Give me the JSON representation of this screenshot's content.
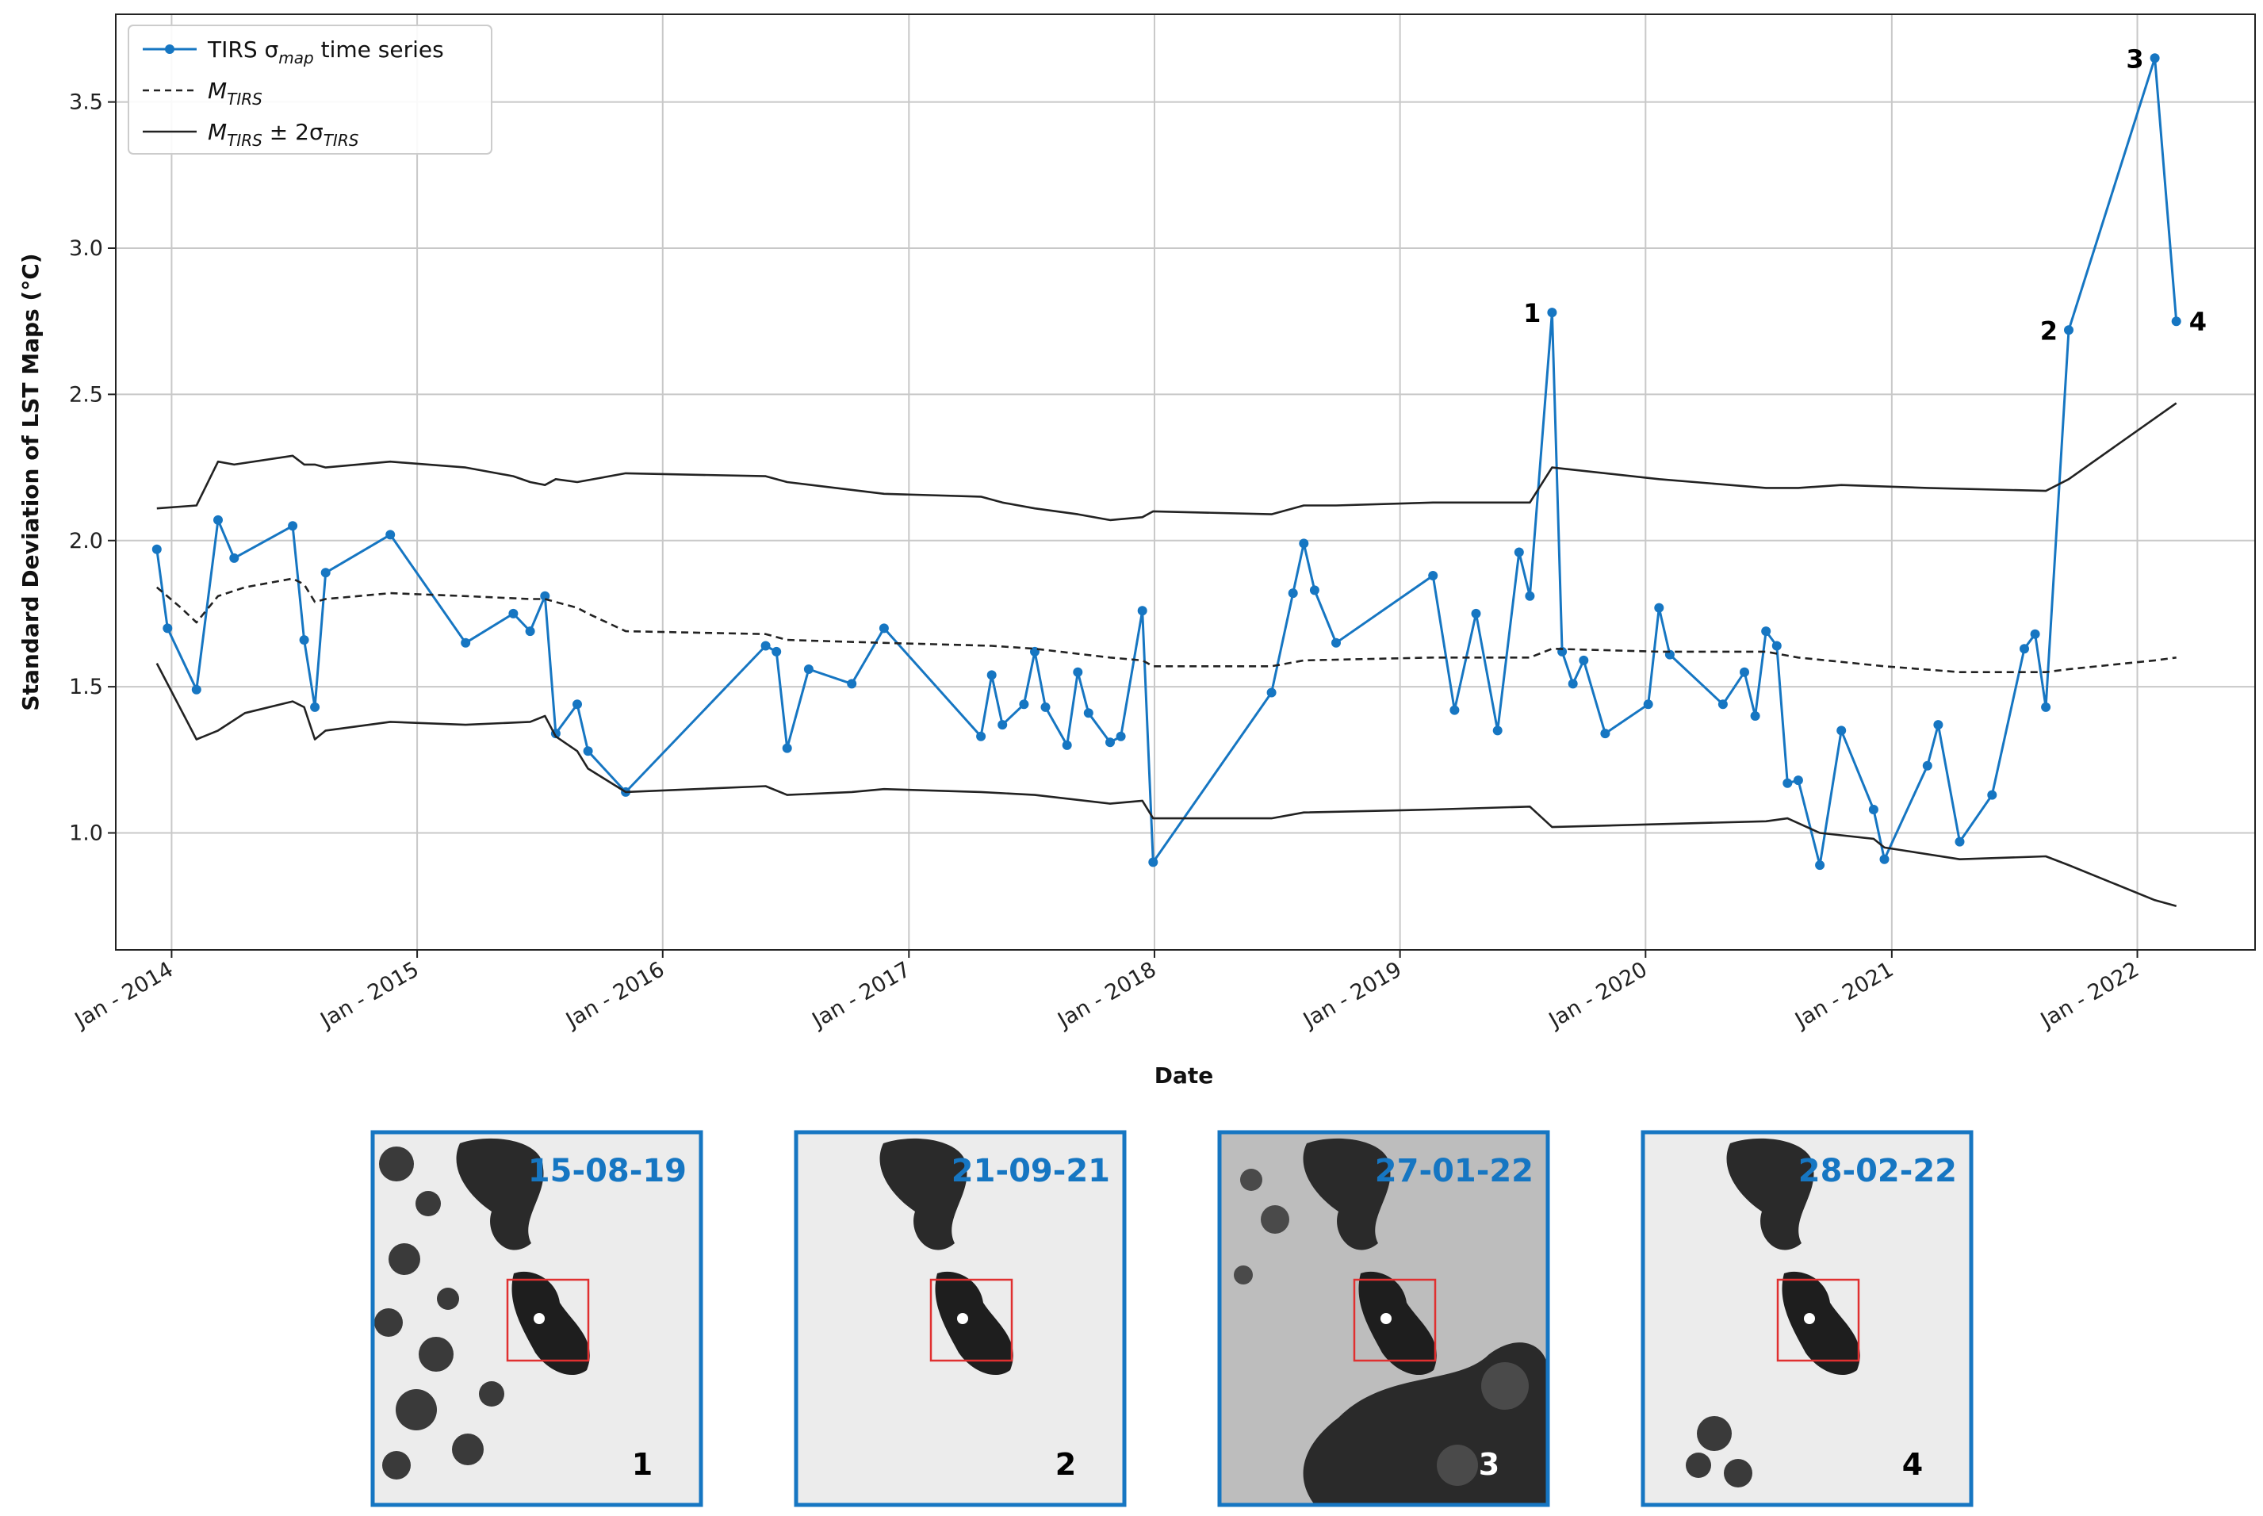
{
  "chart_data": {
    "type": "line",
    "xlabel": "Date",
    "ylabel": "Standard Deviation of LST Maps (°C)",
    "xlim": [
      "2013-10-10",
      "2022-06-25"
    ],
    "ylim": [
      0.6,
      3.8
    ],
    "grid": true,
    "legend_placement": "top-left",
    "x_ticks": [
      {
        "date": "2014-01-01",
        "label": "Jan - 2014"
      },
      {
        "date": "2015-01-01",
        "label": "Jan - 2015"
      },
      {
        "date": "2016-01-01",
        "label": "Jan - 2016"
      },
      {
        "date": "2017-01-01",
        "label": "Jan - 2017"
      },
      {
        "date": "2018-01-01",
        "label": "Jan - 2018"
      },
      {
        "date": "2019-01-01",
        "label": "Jan - 2019"
      },
      {
        "date": "2020-01-01",
        "label": "Jan - 2020"
      },
      {
        "date": "2021-01-01",
        "label": "Jan - 2021"
      },
      {
        "date": "2022-01-01",
        "label": "Jan - 2022"
      }
    ],
    "y_ticks": [
      1.0,
      1.5,
      2.0,
      2.5,
      3.0,
      3.5
    ],
    "y_tick_labels": [
      "1.0",
      "1.5",
      "2.0",
      "2.5",
      "3.0",
      "3.5"
    ],
    "legend": {
      "entries": [
        {
          "text": "TIRS σ",
          "sub": "map",
          "after": " time series",
          "style": "blue-marker"
        },
        {
          "text": "M",
          "sub": "TIRS",
          "after": "",
          "style": "dashed"
        },
        {
          "text": "M",
          "sub": "TIRS",
          "after": " ± 2σ",
          "sub2": "TIRS",
          "style": "solid"
        }
      ]
    },
    "series": [
      {
        "style": "blue-marker",
        "color": "#1676c2",
        "points": [
          [
            "2013-12-10",
            1.97
          ],
          [
            "2013-12-26",
            1.7
          ],
          [
            "2014-02-07",
            1.49
          ],
          [
            "2014-03-11",
            2.07
          ],
          [
            "2014-04-04",
            1.94
          ],
          [
            "2014-06-30",
            2.05
          ],
          [
            "2014-07-17",
            1.66
          ],
          [
            "2014-08-02",
            1.43
          ],
          [
            "2014-08-18",
            1.89
          ],
          [
            "2014-11-22",
            2.02
          ],
          [
            "2015-03-14",
            1.65
          ],
          [
            "2015-05-24",
            1.75
          ],
          [
            "2015-06-18",
            1.69
          ],
          [
            "2015-07-10",
            1.81
          ],
          [
            "2015-07-26",
            1.34
          ],
          [
            "2015-08-27",
            1.44
          ],
          [
            "2015-09-12",
            1.28
          ],
          [
            "2015-11-07",
            1.14
          ],
          [
            "2016-06-02",
            1.64
          ],
          [
            "2016-06-18",
            1.62
          ],
          [
            "2016-07-04",
            1.29
          ],
          [
            "2016-08-05",
            1.56
          ],
          [
            "2016-10-08",
            1.51
          ],
          [
            "2016-11-25",
            1.7
          ],
          [
            "2017-04-18",
            1.33
          ],
          [
            "2017-05-04",
            1.54
          ],
          [
            "2017-05-20",
            1.37
          ],
          [
            "2017-06-21",
            1.44
          ],
          [
            "2017-07-07",
            1.62
          ],
          [
            "2017-07-23",
            1.43
          ],
          [
            "2017-08-24",
            1.3
          ],
          [
            "2017-09-09",
            1.55
          ],
          [
            "2017-09-25",
            1.41
          ],
          [
            "2017-10-27",
            1.31
          ],
          [
            "2017-11-12",
            1.33
          ],
          [
            "2017-12-14",
            1.76
          ],
          [
            "2017-12-30",
            0.9
          ],
          [
            "2018-06-24",
            1.48
          ],
          [
            "2018-07-26",
            1.82
          ],
          [
            "2018-08-11",
            1.99
          ],
          [
            "2018-08-27",
            1.83
          ],
          [
            "2018-09-28",
            1.65
          ],
          [
            "2019-02-19",
            1.88
          ],
          [
            "2019-03-23",
            1.42
          ],
          [
            "2019-04-24",
            1.75
          ],
          [
            "2019-05-26",
            1.35
          ],
          [
            "2019-06-27",
            1.96
          ],
          [
            "2019-07-13",
            1.81
          ],
          [
            "2019-08-15",
            2.78
          ],
          [
            "2019-08-30",
            1.62
          ],
          [
            "2019-09-15",
            1.51
          ],
          [
            "2019-10-01",
            1.59
          ],
          [
            "2019-11-02",
            1.34
          ],
          [
            "2020-01-05",
            1.44
          ],
          [
            "2020-01-21",
            1.77
          ],
          [
            "2020-02-06",
            1.61
          ],
          [
            "2020-04-25",
            1.44
          ],
          [
            "2020-05-27",
            1.55
          ],
          [
            "2020-06-12",
            1.4
          ],
          [
            "2020-06-28",
            1.69
          ],
          [
            "2020-07-14",
            1.64
          ],
          [
            "2020-07-30",
            1.17
          ],
          [
            "2020-08-15",
            1.18
          ],
          [
            "2020-09-16",
            0.89
          ],
          [
            "2020-10-18",
            1.35
          ],
          [
            "2020-12-05",
            1.08
          ],
          [
            "2020-12-21",
            0.91
          ],
          [
            "2021-02-23",
            1.23
          ],
          [
            "2021-03-11",
            1.37
          ],
          [
            "2021-04-12",
            0.97
          ],
          [
            "2021-05-30",
            1.13
          ],
          [
            "2021-07-17",
            1.63
          ],
          [
            "2021-08-02",
            1.68
          ],
          [
            "2021-08-18",
            1.43
          ],
          [
            "2021-09-21",
            2.72
          ],
          [
            "2022-01-27",
            3.65
          ],
          [
            "2022-02-28",
            2.75
          ]
        ]
      },
      {
        "style": "dashed",
        "color": "#222222",
        "points": [
          [
            "2013-12-10",
            1.84
          ],
          [
            "2014-01-15",
            1.77
          ],
          [
            "2014-02-07",
            1.72
          ],
          [
            "2014-03-11",
            1.81
          ],
          [
            "2014-04-20",
            1.84
          ],
          [
            "2014-06-30",
            1.87
          ],
          [
            "2014-07-17",
            1.85
          ],
          [
            "2014-08-02",
            1.79
          ],
          [
            "2014-08-18",
            1.8
          ],
          [
            "2014-11-22",
            1.82
          ],
          [
            "2015-03-14",
            1.81
          ],
          [
            "2015-06-18",
            1.8
          ],
          [
            "2015-07-10",
            1.8
          ],
          [
            "2015-08-27",
            1.77
          ],
          [
            "2015-09-12",
            1.75
          ],
          [
            "2015-11-07",
            1.69
          ],
          [
            "2016-06-02",
            1.68
          ],
          [
            "2016-07-04",
            1.66
          ],
          [
            "2016-11-25",
            1.65
          ],
          [
            "2017-05-04",
            1.64
          ],
          [
            "2017-07-07",
            1.63
          ],
          [
            "2017-10-27",
            1.6
          ],
          [
            "2017-12-14",
            1.59
          ],
          [
            "2017-12-30",
            1.57
          ],
          [
            "2018-06-24",
            1.57
          ],
          [
            "2018-08-11",
            1.59
          ],
          [
            "2019-02-19",
            1.6
          ],
          [
            "2019-07-13",
            1.6
          ],
          [
            "2019-08-15",
            1.63
          ],
          [
            "2020-01-21",
            1.62
          ],
          [
            "2020-06-28",
            1.62
          ],
          [
            "2020-08-15",
            1.6
          ],
          [
            "2020-12-21",
            1.57
          ],
          [
            "2021-04-12",
            1.55
          ],
          [
            "2021-08-18",
            1.55
          ],
          [
            "2021-09-21",
            1.56
          ],
          [
            "2022-01-27",
            1.59
          ],
          [
            "2022-02-28",
            1.6
          ]
        ]
      },
      {
        "style": "solid",
        "color": "#222222",
        "points": [
          [
            "2013-12-10",
            2.11
          ],
          [
            "2014-02-07",
            2.12
          ],
          [
            "2014-03-11",
            2.27
          ],
          [
            "2014-04-04",
            2.26
          ],
          [
            "2014-06-30",
            2.29
          ],
          [
            "2014-07-17",
            2.26
          ],
          [
            "2014-08-02",
            2.26
          ],
          [
            "2014-08-18",
            2.25
          ],
          [
            "2014-11-22",
            2.27
          ],
          [
            "2015-03-14",
            2.25
          ],
          [
            "2015-05-24",
            2.22
          ],
          [
            "2015-06-18",
            2.2
          ],
          [
            "2015-07-10",
            2.19
          ],
          [
            "2015-07-26",
            2.21
          ],
          [
            "2015-08-27",
            2.2
          ],
          [
            "2015-11-07",
            2.23
          ],
          [
            "2016-06-02",
            2.22
          ],
          [
            "2016-07-04",
            2.2
          ],
          [
            "2016-11-25",
            2.16
          ],
          [
            "2017-04-18",
            2.15
          ],
          [
            "2017-05-20",
            2.13
          ],
          [
            "2017-07-07",
            2.11
          ],
          [
            "2017-09-09",
            2.09
          ],
          [
            "2017-10-27",
            2.07
          ],
          [
            "2017-12-14",
            2.08
          ],
          [
            "2017-12-30",
            2.1
          ],
          [
            "2018-06-24",
            2.09
          ],
          [
            "2018-08-11",
            2.12
          ],
          [
            "2018-09-28",
            2.12
          ],
          [
            "2019-02-19",
            2.13
          ],
          [
            "2019-07-13",
            2.13
          ],
          [
            "2019-08-15",
            2.25
          ],
          [
            "2020-01-21",
            2.21
          ],
          [
            "2020-06-28",
            2.18
          ],
          [
            "2020-08-15",
            2.18
          ],
          [
            "2020-10-18",
            2.19
          ],
          [
            "2021-02-23",
            2.18
          ],
          [
            "2021-08-18",
            2.17
          ],
          [
            "2021-09-21",
            2.21
          ],
          [
            "2022-02-28",
            2.47
          ]
        ]
      },
      {
        "style": "solid",
        "color": "#222222",
        "points": [
          [
            "2013-12-10",
            1.58
          ],
          [
            "2014-02-07",
            1.32
          ],
          [
            "2014-03-11",
            1.35
          ],
          [
            "2014-04-20",
            1.41
          ],
          [
            "2014-06-30",
            1.45
          ],
          [
            "2014-07-17",
            1.43
          ],
          [
            "2014-08-02",
            1.32
          ],
          [
            "2014-08-18",
            1.35
          ],
          [
            "2014-11-22",
            1.38
          ],
          [
            "2015-03-14",
            1.37
          ],
          [
            "2015-06-18",
            1.38
          ],
          [
            "2015-07-10",
            1.4
          ],
          [
            "2015-07-26",
            1.33
          ],
          [
            "2015-08-27",
            1.28
          ],
          [
            "2015-09-12",
            1.22
          ],
          [
            "2015-11-07",
            1.14
          ],
          [
            "2016-06-02",
            1.16
          ],
          [
            "2016-07-04",
            1.13
          ],
          [
            "2016-10-08",
            1.14
          ],
          [
            "2016-11-25",
            1.15
          ],
          [
            "2017-04-18",
            1.14
          ],
          [
            "2017-07-07",
            1.13
          ],
          [
            "2017-10-27",
            1.1
          ],
          [
            "2017-12-14",
            1.11
          ],
          [
            "2017-12-30",
            1.05
          ],
          [
            "2018-06-24",
            1.05
          ],
          [
            "2018-08-11",
            1.07
          ],
          [
            "2019-02-19",
            1.08
          ],
          [
            "2019-07-13",
            1.09
          ],
          [
            "2019-08-15",
            1.02
          ],
          [
            "2020-01-21",
            1.03
          ],
          [
            "2020-06-28",
            1.04
          ],
          [
            "2020-07-30",
            1.05
          ],
          [
            "2020-09-16",
            1.0
          ],
          [
            "2020-12-05",
            0.98
          ],
          [
            "2020-12-21",
            0.95
          ],
          [
            "2021-04-12",
            0.91
          ],
          [
            "2021-08-18",
            0.92
          ],
          [
            "2021-09-21",
            0.89
          ],
          [
            "2022-01-27",
            0.77
          ],
          [
            "2022-02-28",
            0.75
          ]
        ]
      }
    ],
    "annotations": [
      {
        "label": "1",
        "date": "2019-08-15",
        "value": 2.78,
        "side": "left"
      },
      {
        "label": "2",
        "date": "2021-09-21",
        "value": 2.72,
        "side": "left"
      },
      {
        "label": "3",
        "date": "2022-01-27",
        "value": 3.65,
        "side": "left"
      },
      {
        "label": "4",
        "date": "2022-02-28",
        "value": 2.75,
        "side": "right"
      }
    ]
  },
  "thumbnails": [
    {
      "date": "15-08-19",
      "number": "1",
      "number_color": "#000000"
    },
    {
      "date": "21-09-21",
      "number": "2",
      "number_color": "#000000"
    },
    {
      "date": "27-01-22",
      "number": "3",
      "number_color": "#ffffff"
    },
    {
      "date": "28-02-22",
      "number": "4",
      "number_color": "#000000"
    }
  ],
  "colors": {
    "accent_blue": "#1676c2",
    "roi_red": "#e03030"
  }
}
